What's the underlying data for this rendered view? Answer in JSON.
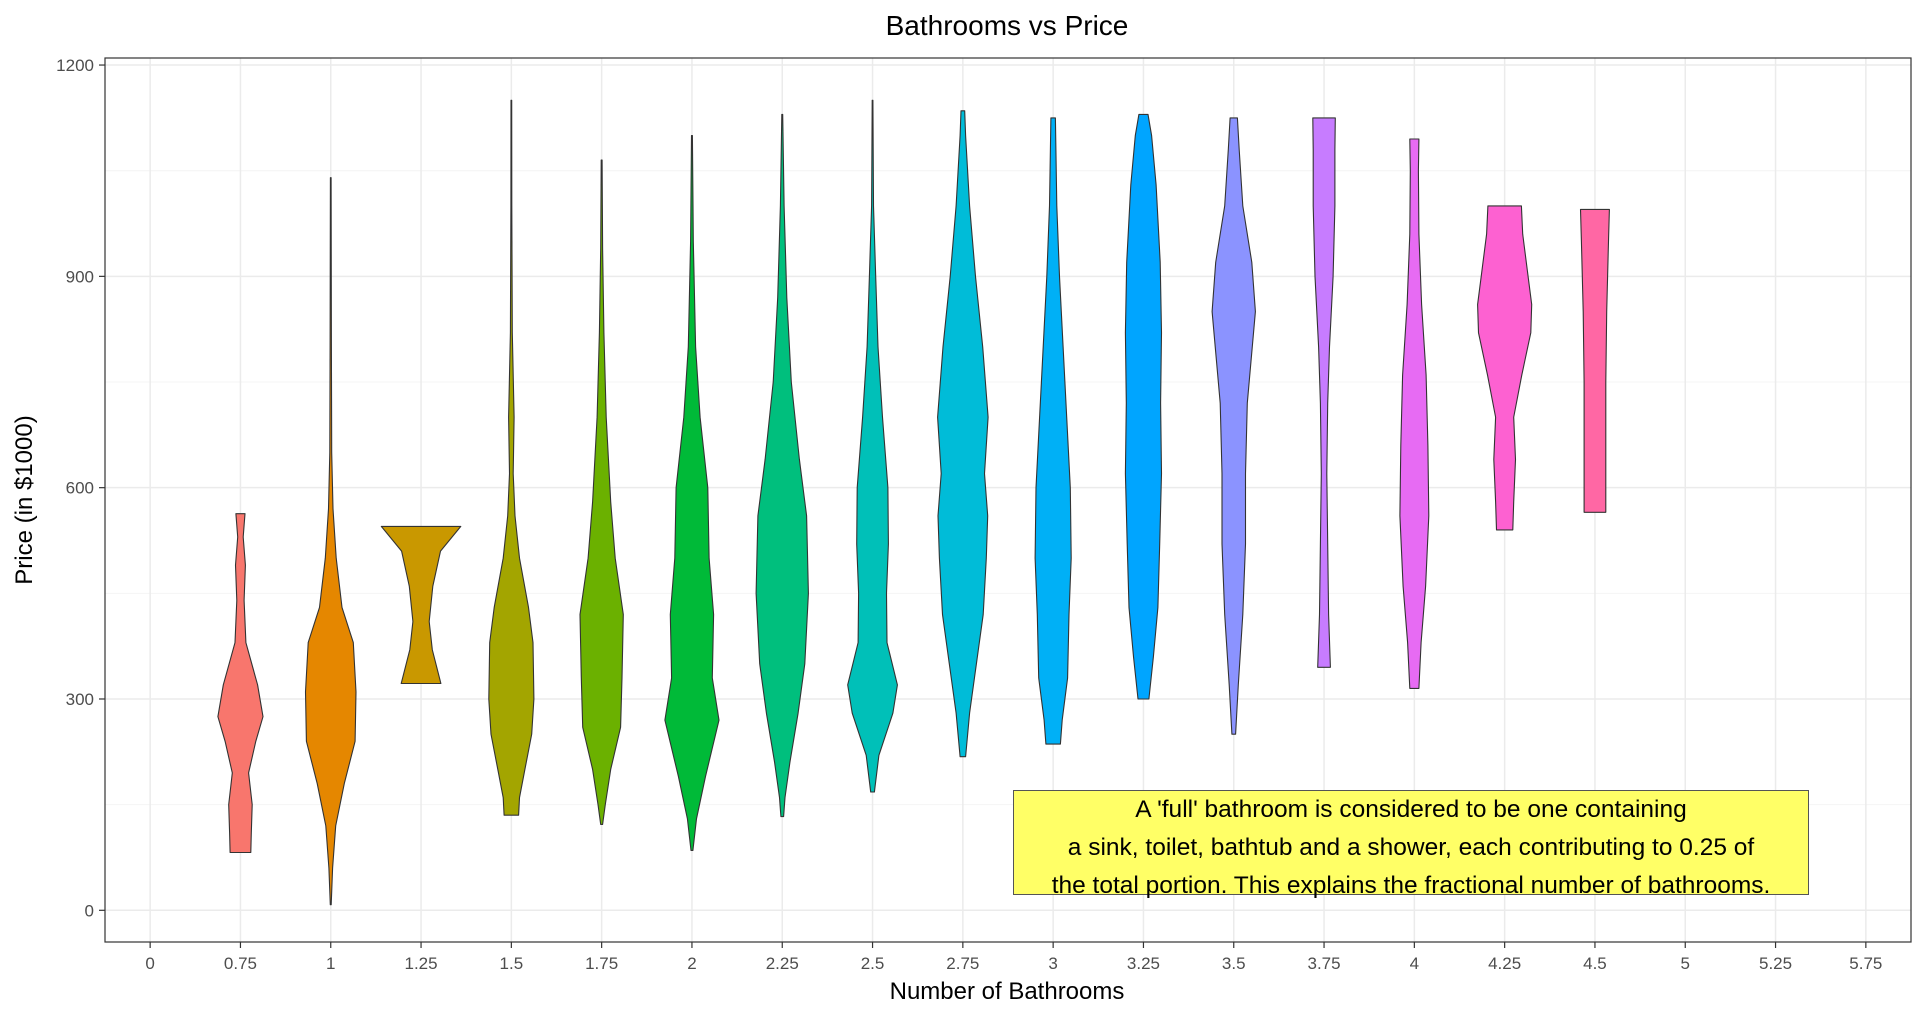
{
  "chart_data": {
    "type": "violin",
    "title": "Bathrooms vs Price",
    "xlabel": "Number of Bathrooms",
    "ylabel": "Price (in $1000)",
    "xlim": [
      -0.5,
      19.5
    ],
    "ylim": [
      -45,
      1210
    ],
    "grid": true,
    "legend": "none",
    "x_ticks": [
      "0",
      "0.75",
      "1",
      "1.25",
      "1.5",
      "1.75",
      "2",
      "2.25",
      "2.5",
      "2.75",
      "3",
      "3.25",
      "3.5",
      "3.75",
      "4",
      "4.25",
      "4.5",
      "5",
      "5.25",
      "5.75"
    ],
    "y_ticks": [
      0,
      300,
      600,
      900,
      1200
    ],
    "y_tick_labels": [
      "0",
      "300",
      "600",
      "900",
      "1200"
    ],
    "series": [
      {
        "category": "0.75",
        "index": 1,
        "color": "#F8766D",
        "min": 82,
        "max": 563,
        "profile": [
          [
            82,
            0.23
          ],
          [
            110,
            0.24
          ],
          [
            150,
            0.26
          ],
          [
            195,
            0.18
          ],
          [
            240,
            0.34
          ],
          [
            275,
            0.5
          ],
          [
            320,
            0.38
          ],
          [
            380,
            0.12
          ],
          [
            440,
            0.08
          ],
          [
            490,
            0.11
          ],
          [
            530,
            0.06
          ],
          [
            563,
            0.1
          ]
        ]
      },
      {
        "category": "1",
        "index": 2,
        "color": "#E58700",
        "min": 8,
        "max": 1040,
        "profile": [
          [
            8,
            0.01
          ],
          [
            60,
            0.04
          ],
          [
            120,
            0.11
          ],
          [
            180,
            0.3
          ],
          [
            240,
            0.54
          ],
          [
            310,
            0.56
          ],
          [
            380,
            0.5
          ],
          [
            430,
            0.25
          ],
          [
            500,
            0.12
          ],
          [
            570,
            0.05
          ],
          [
            650,
            0.02
          ],
          [
            800,
            0.015
          ],
          [
            1040,
            0.008
          ]
        ]
      },
      {
        "category": "1.25",
        "index": 3,
        "color": "#C99800",
        "min": 322,
        "max": 545,
        "profile": [
          [
            322,
            0.44
          ],
          [
            370,
            0.25
          ],
          [
            410,
            0.18
          ],
          [
            460,
            0.26
          ],
          [
            510,
            0.43
          ],
          [
            545,
            0.88
          ]
        ]
      },
      {
        "category": "1.5",
        "index": 4,
        "color": "#A3A500",
        "min": 135,
        "max": 1150,
        "profile": [
          [
            135,
            0.16
          ],
          [
            160,
            0.18
          ],
          [
            200,
            0.3
          ],
          [
            250,
            0.45
          ],
          [
            300,
            0.5
          ],
          [
            380,
            0.48
          ],
          [
            430,
            0.38
          ],
          [
            500,
            0.18
          ],
          [
            560,
            0.08
          ],
          [
            620,
            0.04
          ],
          [
            700,
            0.06
          ],
          [
            820,
            0.02
          ],
          [
            1000,
            0.01
          ],
          [
            1150,
            0.008
          ]
        ]
      },
      {
        "category": "1.75",
        "index": 5,
        "color": "#6BB100",
        "min": 122,
        "max": 1065,
        "profile": [
          [
            122,
            0.02
          ],
          [
            150,
            0.08
          ],
          [
            200,
            0.2
          ],
          [
            260,
            0.42
          ],
          [
            330,
            0.45
          ],
          [
            420,
            0.48
          ],
          [
            500,
            0.3
          ],
          [
            580,
            0.2
          ],
          [
            700,
            0.1
          ],
          [
            820,
            0.05
          ],
          [
            940,
            0.02
          ],
          [
            1065,
            0.01
          ]
        ]
      },
      {
        "category": "2",
        "index": 6,
        "color": "#00BA38",
        "min": 85,
        "max": 1100,
        "profile": [
          [
            85,
            0.02
          ],
          [
            130,
            0.1
          ],
          [
            190,
            0.3
          ],
          [
            270,
            0.6
          ],
          [
            330,
            0.45
          ],
          [
            420,
            0.48
          ],
          [
            500,
            0.38
          ],
          [
            600,
            0.35
          ],
          [
            700,
            0.18
          ],
          [
            800,
            0.08
          ],
          [
            950,
            0.03
          ],
          [
            1100,
            0.01
          ]
        ]
      },
      {
        "category": "2.25",
        "index": 7,
        "color": "#00BF7D",
        "min": 133,
        "max": 1130,
        "profile": [
          [
            133,
            0.03
          ],
          [
            160,
            0.06
          ],
          [
            210,
            0.17
          ],
          [
            280,
            0.35
          ],
          [
            350,
            0.5
          ],
          [
            450,
            0.58
          ],
          [
            560,
            0.54
          ],
          [
            640,
            0.38
          ],
          [
            750,
            0.2
          ],
          [
            870,
            0.1
          ],
          [
            1000,
            0.04
          ],
          [
            1130,
            0.01
          ]
        ]
      },
      {
        "category": "2.5",
        "index": 8,
        "color": "#00C0B8",
        "min": 168,
        "max": 1150,
        "profile": [
          [
            168,
            0.04
          ],
          [
            220,
            0.14
          ],
          [
            280,
            0.45
          ],
          [
            320,
            0.55
          ],
          [
            380,
            0.32
          ],
          [
            450,
            0.31
          ],
          [
            520,
            0.35
          ],
          [
            600,
            0.34
          ],
          [
            700,
            0.22
          ],
          [
            800,
            0.12
          ],
          [
            900,
            0.07
          ],
          [
            1000,
            0.02
          ],
          [
            1150,
            0.008
          ]
        ]
      },
      {
        "category": "2.75",
        "index": 9,
        "color": "#00BCD8",
        "min": 218,
        "max": 1135,
        "profile": [
          [
            218,
            0.06
          ],
          [
            280,
            0.15
          ],
          [
            350,
            0.3
          ],
          [
            420,
            0.45
          ],
          [
            500,
            0.52
          ],
          [
            560,
            0.55
          ],
          [
            620,
            0.48
          ],
          [
            700,
            0.56
          ],
          [
            800,
            0.44
          ],
          [
            900,
            0.28
          ],
          [
            1000,
            0.15
          ],
          [
            1100,
            0.06
          ],
          [
            1135,
            0.04
          ]
        ]
      },
      {
        "category": "3",
        "index": 10,
        "color": "#00B0F6",
        "min": 236,
        "max": 1125,
        "profile": [
          [
            236,
            0.16
          ],
          [
            270,
            0.2
          ],
          [
            330,
            0.32
          ],
          [
            420,
            0.35
          ],
          [
            500,
            0.4
          ],
          [
            600,
            0.38
          ],
          [
            700,
            0.3
          ],
          [
            800,
            0.22
          ],
          [
            900,
            0.14
          ],
          [
            1000,
            0.08
          ],
          [
            1125,
            0.05
          ]
        ]
      },
      {
        "category": "3.25",
        "index": 11,
        "color": "#00A5FF",
        "min": 300,
        "max": 1130,
        "profile": [
          [
            300,
            0.12
          ],
          [
            360,
            0.22
          ],
          [
            430,
            0.32
          ],
          [
            520,
            0.36
          ],
          [
            620,
            0.4
          ],
          [
            720,
            0.38
          ],
          [
            820,
            0.4
          ],
          [
            920,
            0.37
          ],
          [
            1030,
            0.28
          ],
          [
            1100,
            0.18
          ],
          [
            1130,
            0.1
          ]
        ]
      },
      {
        "category": "3.5",
        "index": 12,
        "color": "#8B93FF",
        "min": 250,
        "max": 1125,
        "profile": [
          [
            250,
            0.04
          ],
          [
            320,
            0.1
          ],
          [
            420,
            0.2
          ],
          [
            520,
            0.26
          ],
          [
            620,
            0.26
          ],
          [
            720,
            0.3
          ],
          [
            850,
            0.48
          ],
          [
            920,
            0.4
          ],
          [
            1000,
            0.2
          ],
          [
            1080,
            0.12
          ],
          [
            1125,
            0.08
          ]
        ]
      },
      {
        "category": "3.75",
        "index": 13,
        "color": "#C77CFF",
        "min": 345,
        "max": 1125,
        "profile": [
          [
            345,
            0.14
          ],
          [
            420,
            0.1
          ],
          [
            520,
            0.08
          ],
          [
            620,
            0.06
          ],
          [
            720,
            0.08
          ],
          [
            800,
            0.12
          ],
          [
            900,
            0.2
          ],
          [
            1000,
            0.24
          ],
          [
            1080,
            0.24
          ],
          [
            1125,
            0.25
          ]
        ]
      },
      {
        "category": "4",
        "index": 14,
        "color": "#E76BF3",
        "min": 315,
        "max": 1095,
        "profile": [
          [
            315,
            0.1
          ],
          [
            380,
            0.15
          ],
          [
            460,
            0.25
          ],
          [
            560,
            0.32
          ],
          [
            660,
            0.3
          ],
          [
            760,
            0.26
          ],
          [
            860,
            0.16
          ],
          [
            960,
            0.1
          ],
          [
            1050,
            0.09
          ],
          [
            1095,
            0.1
          ]
        ]
      },
      {
        "category": "4.25",
        "index": 15,
        "color": "#FD61D1",
        "min": 540,
        "max": 1000,
        "profile": [
          [
            540,
            0.18
          ],
          [
            580,
            0.2
          ],
          [
            640,
            0.24
          ],
          [
            700,
            0.2
          ],
          [
            760,
            0.38
          ],
          [
            820,
            0.58
          ],
          [
            860,
            0.6
          ],
          [
            900,
            0.52
          ],
          [
            960,
            0.4
          ],
          [
            1000,
            0.37
          ]
        ]
      },
      {
        "category": "4.5",
        "index": 16,
        "color": "#FF67A4",
        "min": 565,
        "max": 995,
        "profile": [
          [
            565,
            0.24
          ],
          [
            650,
            0.24
          ],
          [
            750,
            0.24
          ],
          [
            850,
            0.26
          ],
          [
            950,
            0.3
          ],
          [
            995,
            0.32
          ]
        ]
      }
    ],
    "annotation": {
      "lines": [
        "A 'full' bathroom is considered to be one containing",
        "a sink, toilet, bathtub and a shower, each contributing to 0.25 of",
        "the total portion. This explains the fractional number of bathrooms."
      ],
      "background": "#ffff66"
    },
    "colors": {
      "grid_major": "#ebebeb",
      "grid_minor": "#f4f4f4",
      "axis_text": "#4d4d4d",
      "outline": "#333333"
    }
  }
}
